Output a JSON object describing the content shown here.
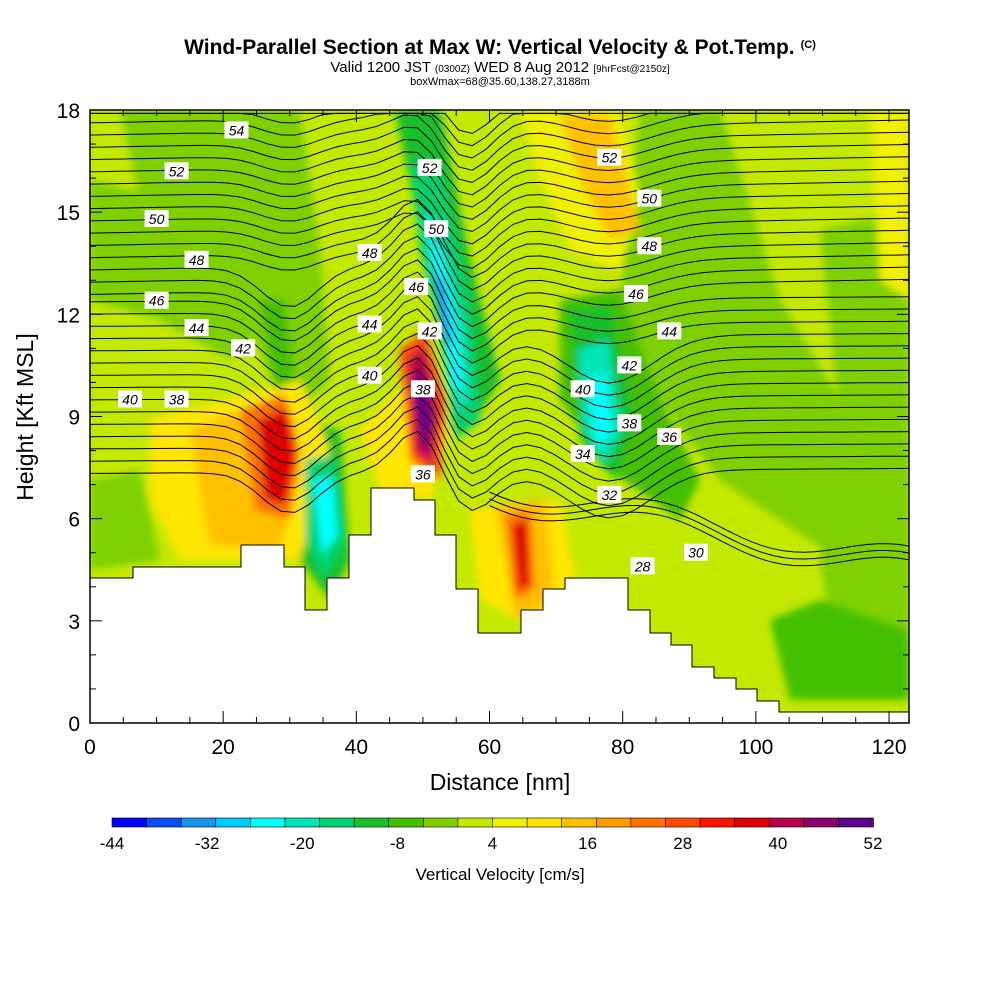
{
  "title": {
    "main": "Wind-Parallel Section at Max W: Vertical Velocity & Pot.Temp.",
    "copyright": "(C)",
    "valid_prefix": "Valid 1200 JST",
    "valid_utc": "(0300Z)",
    "valid_date": "WED 8 Aug 2012",
    "forecast": "[9hrFcst@2150z]",
    "subtitle": "boxWmax=68@35.60,138.27,3188m"
  },
  "chart_data": {
    "type": "heatmap",
    "xlabel": "Distance [nm]",
    "ylabel": "Height [Kft MSL]",
    "xlim": [
      0,
      123
    ],
    "ylim": [
      0,
      18
    ],
    "x_ticks": [
      0,
      20,
      40,
      60,
      80,
      100,
      120
    ],
    "y_ticks": [
      0,
      3,
      6,
      9,
      12,
      15,
      18
    ],
    "grid": false,
    "colorbar": {
      "title": "Vertical Velocity [cm/s]",
      "tick_labels": [
        "-44",
        "-32",
        "-20",
        "-8",
        "4",
        "16",
        "28",
        "40",
        "52"
      ],
      "colors": [
        "#0000ff",
        "#0a4cf5",
        "#1296f0",
        "#00ccff",
        "#00ffff",
        "#00e6b8",
        "#00d26e",
        "#18c02a",
        "#42c000",
        "#7ed000",
        "#c4e800",
        "#f0f000",
        "#ffe600",
        "#ffc000",
        "#ff9a00",
        "#ff7200",
        "#ff4a00",
        "#ff1400",
        "#e00000",
        "#b8004a",
        "#8c0070",
        "#600090"
      ]
    },
    "contour_field": "Potential Temperature",
    "contour_labels": [
      {
        "text": "54",
        "x": 22,
        "y": 17.4
      },
      {
        "text": "52",
        "x": 13,
        "y": 16.2
      },
      {
        "text": "50",
        "x": 10,
        "y": 14.8
      },
      {
        "text": "48",
        "x": 16,
        "y": 13.6
      },
      {
        "text": "46",
        "x": 10,
        "y": 12.4
      },
      {
        "text": "44",
        "x": 16,
        "y": 11.6
      },
      {
        "text": "42",
        "x": 23,
        "y": 11.0
      },
      {
        "text": "40",
        "x": 6,
        "y": 9.5
      },
      {
        "text": "38",
        "x": 13,
        "y": 9.5
      },
      {
        "text": "52",
        "x": 51,
        "y": 16.3
      },
      {
        "text": "50",
        "x": 52,
        "y": 14.5
      },
      {
        "text": "48",
        "x": 42,
        "y": 13.8
      },
      {
        "text": "46",
        "x": 49,
        "y": 12.8
      },
      {
        "text": "44",
        "x": 42,
        "y": 11.7
      },
      {
        "text": "42",
        "x": 51,
        "y": 11.5
      },
      {
        "text": "40",
        "x": 42,
        "y": 10.2
      },
      {
        "text": "38",
        "x": 50,
        "y": 9.8
      },
      {
        "text": "36",
        "x": 50,
        "y": 7.3
      },
      {
        "text": "52",
        "x": 78,
        "y": 16.6
      },
      {
        "text": "50",
        "x": 84,
        "y": 15.4
      },
      {
        "text": "48",
        "x": 84,
        "y": 14.0
      },
      {
        "text": "46",
        "x": 82,
        "y": 12.6
      },
      {
        "text": "44",
        "x": 87,
        "y": 11.5
      },
      {
        "text": "42",
        "x": 81,
        "y": 10.5
      },
      {
        "text": "40",
        "x": 74,
        "y": 9.8
      },
      {
        "text": "38",
        "x": 81,
        "y": 8.8
      },
      {
        "text": "36",
        "x": 87,
        "y": 8.4
      },
      {
        "text": "34",
        "x": 74,
        "y": 7.9
      },
      {
        "text": "32",
        "x": 78,
        "y": 6.7
      },
      {
        "text": "30",
        "x": 91,
        "y": 5.0
      },
      {
        "text": "28",
        "x": 83,
        "y": 4.6
      }
    ]
  }
}
